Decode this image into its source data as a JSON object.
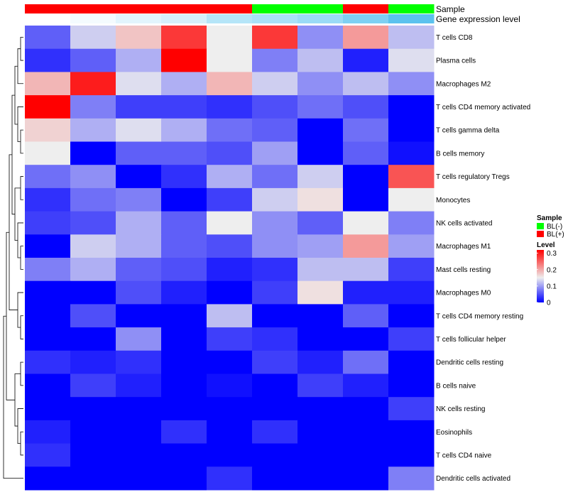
{
  "chart_data": {
    "type": "heatmap",
    "annotation_labels": {
      "sample": "Sample",
      "gene": "Gene expression level"
    },
    "columns": [
      {
        "sample": "BL(+)",
        "gene_color": "#ffffff"
      },
      {
        "sample": "BL(+)",
        "gene_color": "#f4fbfe"
      },
      {
        "sample": "BL(+)",
        "gene_color": "#e2f5fd"
      },
      {
        "sample": "BL(+)",
        "gene_color": "#d6f0fb"
      },
      {
        "sample": "BL(+)",
        "gene_color": "#b5e5f8"
      },
      {
        "sample": "BL(-)",
        "gene_color": "#a9e1f8"
      },
      {
        "sample": "BL(-)",
        "gene_color": "#9adbf6"
      },
      {
        "sample": "BL(+)",
        "gene_color": "#7ed0f3"
      },
      {
        "sample": "BL(-)",
        "gene_color": "#5bc2ee"
      }
    ],
    "rows": [
      "T cells CD8",
      "Plasma cells",
      "Macrophages M2",
      "T cells CD4 memory activated",
      "T cells gamma delta",
      "B cells memory",
      "T cells regulatory  Tregs",
      "Monocytes",
      "NK cells activated",
      "Macrophages M1",
      "Mast cells resting",
      "Macrophages M0",
      "T cells CD4 memory resting",
      "T cells follicular helper",
      "Dendritic cells resting",
      "B cells naive",
      "NK cells resting",
      "Eosinophils",
      "T cells CD4 naive",
      "Dendritic cells activated"
    ],
    "values": [
      [
        0.06,
        0.13,
        0.18,
        0.28,
        0.15,
        0.28,
        0.09,
        0.21,
        0.12
      ],
      [
        0.03,
        0.06,
        0.11,
        0.32,
        0.15,
        0.08,
        0.12,
        0.02,
        0.14
      ],
      [
        0.19,
        0.3,
        0.14,
        0.11,
        0.19,
        0.13,
        0.09,
        0.12,
        0.09
      ],
      [
        0.32,
        0.08,
        0.04,
        0.04,
        0.03,
        0.05,
        0.07,
        0.05,
        0.0
      ],
      [
        0.17,
        0.11,
        0.14,
        0.11,
        0.07,
        0.06,
        0.0,
        0.07,
        0.0
      ],
      [
        0.15,
        0.0,
        0.06,
        0.06,
        0.05,
        0.1,
        0.0,
        0.06,
        0.01
      ],
      [
        0.07,
        0.09,
        0.0,
        0.03,
        0.11,
        0.07,
        0.13,
        0.0,
        0.26
      ],
      [
        0.03,
        0.07,
        0.08,
        0.0,
        0.04,
        0.13,
        0.16,
        0.0,
        0.15
      ],
      [
        0.04,
        0.05,
        0.11,
        0.06,
        0.15,
        0.09,
        0.06,
        0.15,
        0.08
      ],
      [
        0.0,
        0.13,
        0.11,
        0.06,
        0.05,
        0.09,
        0.1,
        0.21,
        0.1
      ],
      [
        0.08,
        0.11,
        0.06,
        0.05,
        0.02,
        0.03,
        0.12,
        0.12,
        0.04
      ],
      [
        0.0,
        0.0,
        0.05,
        0.02,
        0.0,
        0.04,
        0.16,
        0.02,
        0.02
      ],
      [
        0.0,
        0.05,
        0.0,
        0.0,
        0.12,
        0.0,
        0.0,
        0.06,
        0.0
      ],
      [
        0.0,
        0.0,
        0.09,
        0.0,
        0.04,
        0.03,
        0.0,
        0.0,
        0.04
      ],
      [
        0.03,
        0.02,
        0.03,
        0.0,
        0.0,
        0.04,
        0.02,
        0.07,
        0.0
      ],
      [
        0.0,
        0.04,
        0.02,
        0.0,
        0.01,
        0.0,
        0.04,
        0.02,
        0.0
      ],
      [
        0.0,
        0.0,
        0.0,
        0.0,
        0.0,
        0.0,
        0.0,
        0.0,
        0.04
      ],
      [
        0.02,
        0.0,
        0.0,
        0.03,
        0.0,
        0.03,
        0.0,
        0.0,
        0.0
      ],
      [
        0.03,
        0.0,
        0.0,
        0.0,
        0.0,
        0.0,
        0.0,
        0.0,
        0.0
      ],
      [
        0.0,
        0.0,
        0.0,
        0.0,
        0.03,
        0.0,
        0.0,
        0.0,
        0.08
      ]
    ],
    "color_scale": {
      "low": "#0000ff",
      "mid": "#eeeeee",
      "high": "#ff0000",
      "min": 0,
      "mid_value": 0.15,
      "max": 0.32
    },
    "legend": {
      "placement": "right",
      "sample": {
        "title": "Sample",
        "entries": [
          {
            "label": "BL(-)",
            "color": "#00ff00"
          },
          {
            "label": "BL(+)",
            "color": "#ff0000"
          }
        ]
      },
      "level": {
        "title": "Level",
        "ticks": [
          "0.3",
          "0.2",
          "0.1",
          "0"
        ],
        "tick_values": [
          0.3,
          0.2,
          0.1,
          0
        ]
      }
    },
    "dendrogram": "rows"
  }
}
